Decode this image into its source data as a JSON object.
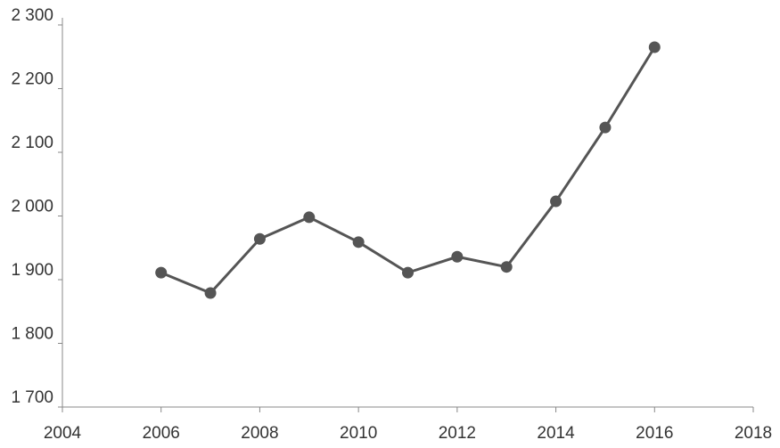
{
  "chart_data": {
    "type": "line",
    "x": [
      2006,
      2007,
      2008,
      2009,
      2010,
      2011,
      2012,
      2013,
      2014,
      2015,
      2016
    ],
    "series": [
      {
        "color": "#555555",
        "values": [
          1911,
          1879,
          1964,
          1998,
          1959,
          1911,
          1936,
          1920,
          2023,
          2139,
          2265
        ]
      }
    ],
    "xlim": [
      2004,
      2018
    ],
    "xticks": [
      2004,
      2006,
      2008,
      2010,
      2012,
      2014,
      2016,
      2018
    ],
    "ylim": [
      1700,
      2300
    ],
    "yticks": [
      {
        "value": 1700,
        "label": "1 700"
      },
      {
        "value": 1800,
        "label": "1 800"
      },
      {
        "value": 1900,
        "label": "1 900"
      },
      {
        "value": 2000,
        "label": "2 000"
      },
      {
        "value": 2100,
        "label": "2 100"
      },
      {
        "value": 2200,
        "label": "2 200"
      },
      {
        "value": 2300,
        "label": "2 300"
      }
    ],
    "grid": false
  }
}
